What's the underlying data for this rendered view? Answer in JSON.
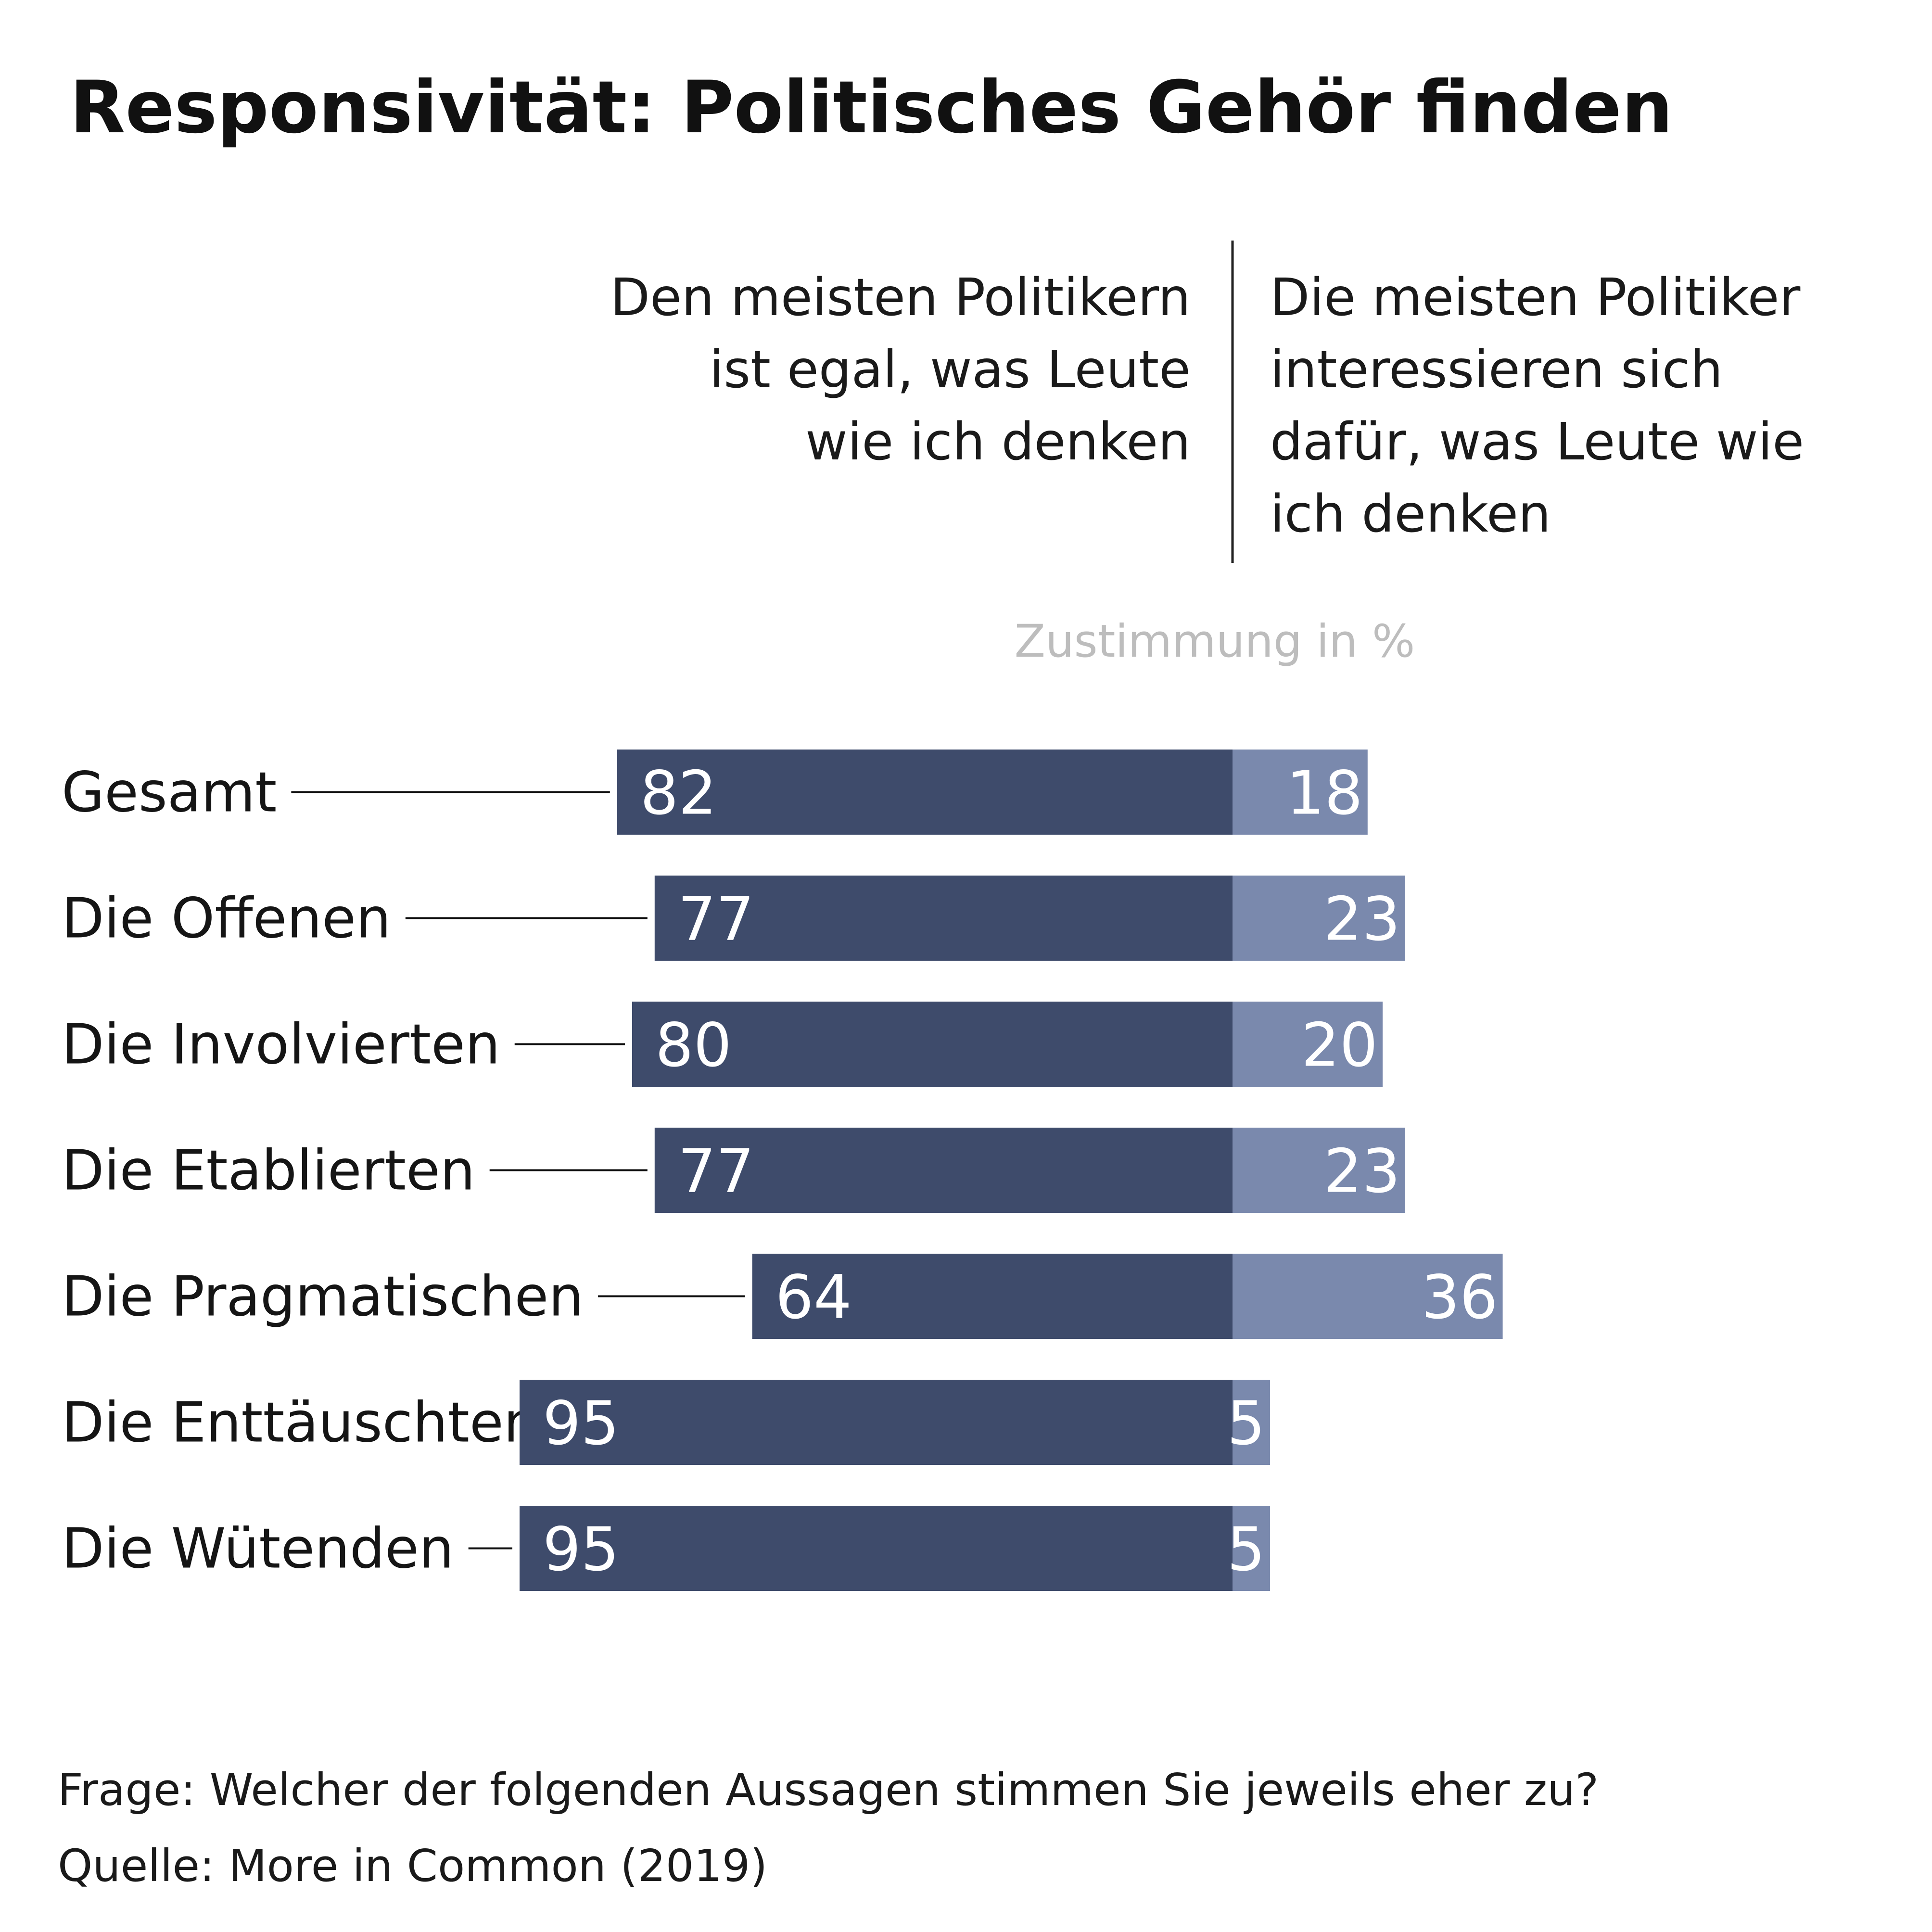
{
  "chart_data": {
    "type": "bar",
    "stacked": true,
    "orientation": "horizontal",
    "title": "Responsivität: Politisches Gehör finden",
    "header_left": [
      "Den meisten Politikern",
      "ist egal, was Leute",
      "wie ich denken"
    ],
    "header_right": [
      "Die meisten Politiker",
      "interessieren sich",
      "dafür, was Leute wie",
      "ich denken"
    ],
    "unit_label": "Zustimmung in %",
    "categories": [
      "Gesamt",
      "Die Offenen",
      "Die Involvierten",
      "Die Etablierten",
      "Die Pragmatischen",
      "Die Enttäuschten",
      "Die Wütenden"
    ],
    "series": [
      {
        "name": "Den meisten Politikern ist egal, was Leute wie ich denken",
        "values": [
          82,
          77,
          80,
          77,
          64,
          95,
          95
        ],
        "color": "#3e4b6b"
      },
      {
        "name": "Die meisten Politiker interessieren sich dafür, was Leute wie ich denken",
        "values": [
          18,
          23,
          20,
          23,
          36,
          5,
          5
        ],
        "color": "#7a89ad"
      }
    ],
    "xlim": [
      0,
      100
    ],
    "grid": false,
    "legend": "none",
    "footnotes": [
      "Frage: Welcher der folgenden Aussagen stimmen Sie jeweils eher zu?",
      "Quelle: More in Common (2019)"
    ]
  }
}
